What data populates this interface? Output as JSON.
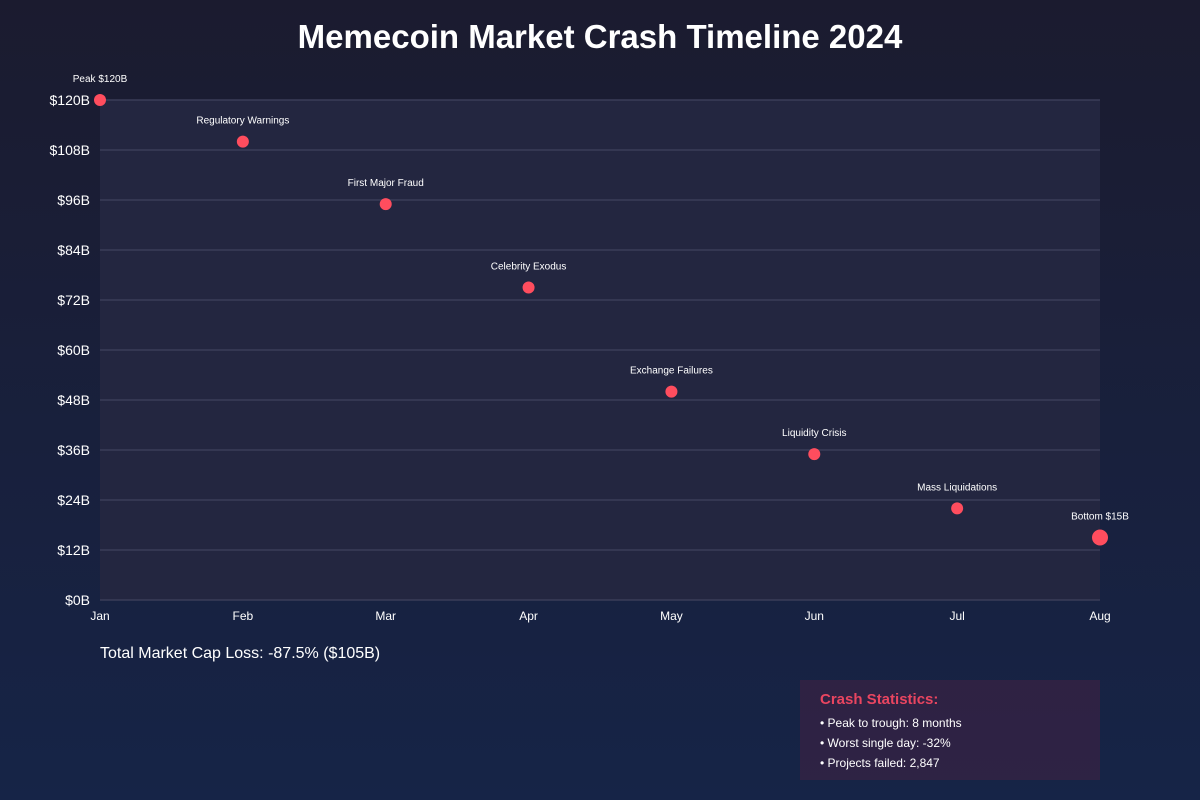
{
  "chart_data": {
    "type": "scatter",
    "title": "Memecoin Market Crash Timeline 2024",
    "xlabel": "",
    "ylabel": "",
    "x_categories": [
      "Jan",
      "Feb",
      "Mar",
      "Apr",
      "May",
      "Jun",
      "Jul",
      "Aug"
    ],
    "y_ticks": [
      "$0B",
      "$12B",
      "$24B",
      "$36B",
      "$48B",
      "$60B",
      "$72B",
      "$84B",
      "$96B",
      "$108B",
      "$120B"
    ],
    "ylim": [
      0,
      120
    ],
    "grid": true,
    "points": [
      {
        "x": "Jan",
        "y": 120,
        "label": "Peak $120B"
      },
      {
        "x": "Feb",
        "y": 110,
        "label": "Regulatory Warnings"
      },
      {
        "x": "Mar",
        "y": 95,
        "label": "First Major Fraud"
      },
      {
        "x": "Apr",
        "y": 75,
        "label": "Celebrity Exodus"
      },
      {
        "x": "May",
        "y": 50,
        "label": "Exchange Failures"
      },
      {
        "x": "Jun",
        "y": 35,
        "label": "Liquidity Crisis"
      },
      {
        "x": "Jul",
        "y": 22,
        "label": "Mass Liquidations"
      },
      {
        "x": "Aug",
        "y": 15,
        "label": "Bottom $15B"
      }
    ],
    "marker_color": "#ff4d5e"
  },
  "summary": {
    "total_loss": "Total Market Cap Loss: -87.5% ($105B)"
  },
  "stats": {
    "title": "Crash Statistics:",
    "lines": [
      "• Peak to trough: 8 months",
      "• Worst single day: -32%",
      "• Projects failed: 2,847"
    ]
  },
  "colors": {
    "plot_background": "#232640",
    "grid": "#3a3d58",
    "accent": "#e94560"
  }
}
